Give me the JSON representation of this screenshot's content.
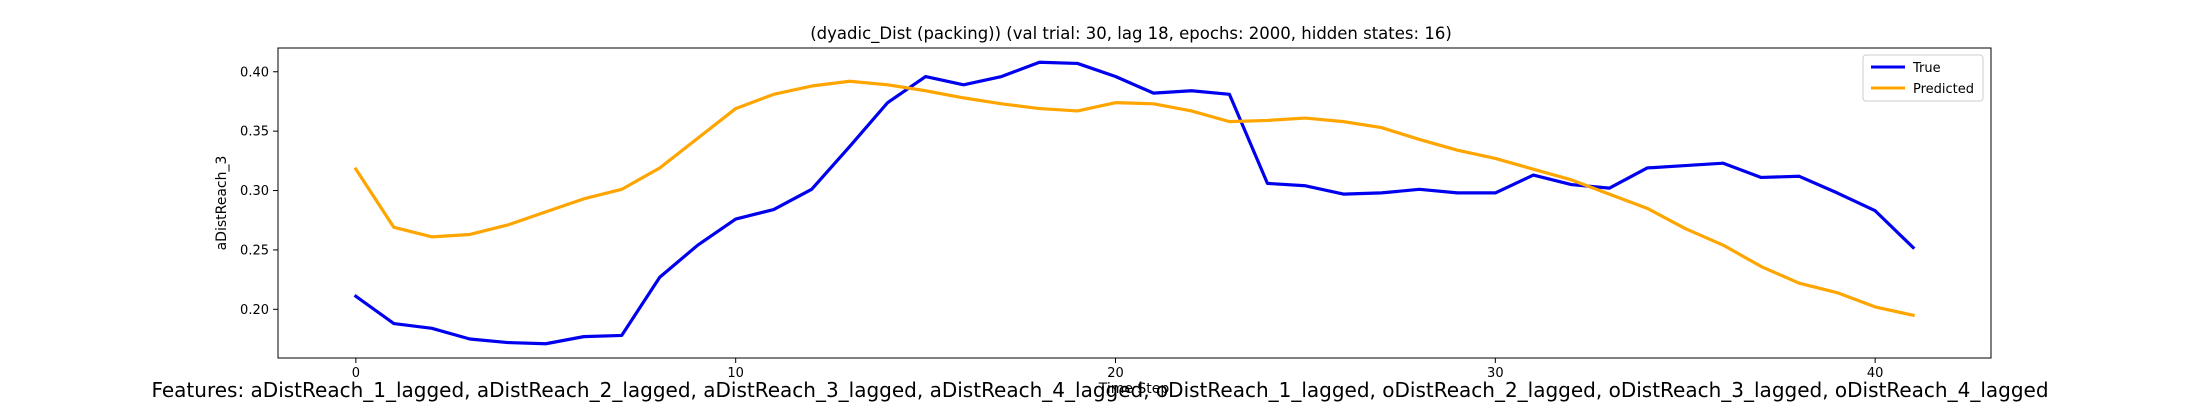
{
  "chart_data": {
    "type": "line",
    "title": "(dyadic_Dist (packing)) (val trial: 30, lag 18, epochs: 2000, hidden states: 16)",
    "xlabel": "Time Step",
    "ylabel": "aDistReach_3",
    "xlim": [
      -2.05,
      43.05
    ],
    "ylim": [
      0.159,
      0.42
    ],
    "xticks": [
      0,
      10,
      20,
      30,
      40
    ],
    "yticks": [
      0.2,
      0.25,
      0.3,
      0.35,
      0.4
    ],
    "xtick_labels": [
      "0",
      "10",
      "20",
      "30",
      "40"
    ],
    "ytick_labels": [
      "0.20",
      "0.25",
      "0.30",
      "0.35",
      "0.40"
    ],
    "grid": false,
    "legend_position": "top-right",
    "x": [
      0,
      1,
      2,
      3,
      4,
      5,
      6,
      7,
      8,
      9,
      10,
      11,
      12,
      13,
      14,
      15,
      16,
      17,
      18,
      19,
      20,
      21,
      22,
      23,
      24,
      25,
      26,
      27,
      28,
      29,
      30,
      31,
      32,
      33,
      34,
      35,
      36,
      37,
      38,
      39,
      40,
      41
    ],
    "series": [
      {
        "name": "True",
        "color": "#0000ee",
        "values": [
          0.211,
          0.188,
          0.184,
          0.175,
          0.172,
          0.171,
          0.177,
          0.178,
          0.227,
          0.254,
          0.276,
          0.284,
          0.301,
          0.337,
          0.374,
          0.396,
          0.389,
          0.396,
          0.408,
          0.407,
          0.396,
          0.382,
          0.384,
          0.381,
          0.306,
          0.304,
          0.297,
          0.298,
          0.301,
          0.298,
          0.298,
          0.313,
          0.305,
          0.302,
          0.319,
          0.321,
          0.323,
          0.311,
          0.312,
          0.298,
          0.283,
          0.252
        ]
      },
      {
        "name": "Predicted",
        "color": "#ffa500",
        "values": [
          0.318,
          0.269,
          0.261,
          0.263,
          0.271,
          0.282,
          0.293,
          0.301,
          0.319,
          0.344,
          0.369,
          0.381,
          0.388,
          0.392,
          0.389,
          0.384,
          0.378,
          0.373,
          0.369,
          0.367,
          0.374,
          0.373,
          0.367,
          0.358,
          0.359,
          0.361,
          0.358,
          0.353,
          0.343,
          0.334,
          0.327,
          0.318,
          0.309,
          0.297,
          0.285,
          0.268,
          0.254,
          0.236,
          0.222,
          0.214,
          0.202,
          0.195
        ]
      }
    ]
  },
  "caption": "Features: aDistReach_1_lagged, aDistReach_2_lagged, aDistReach_3_lagged, aDistReach_4_lagged, oDistReach_1_lagged, oDistReach_2_lagged, oDistReach_3_lagged, oDistReach_4_lagged"
}
